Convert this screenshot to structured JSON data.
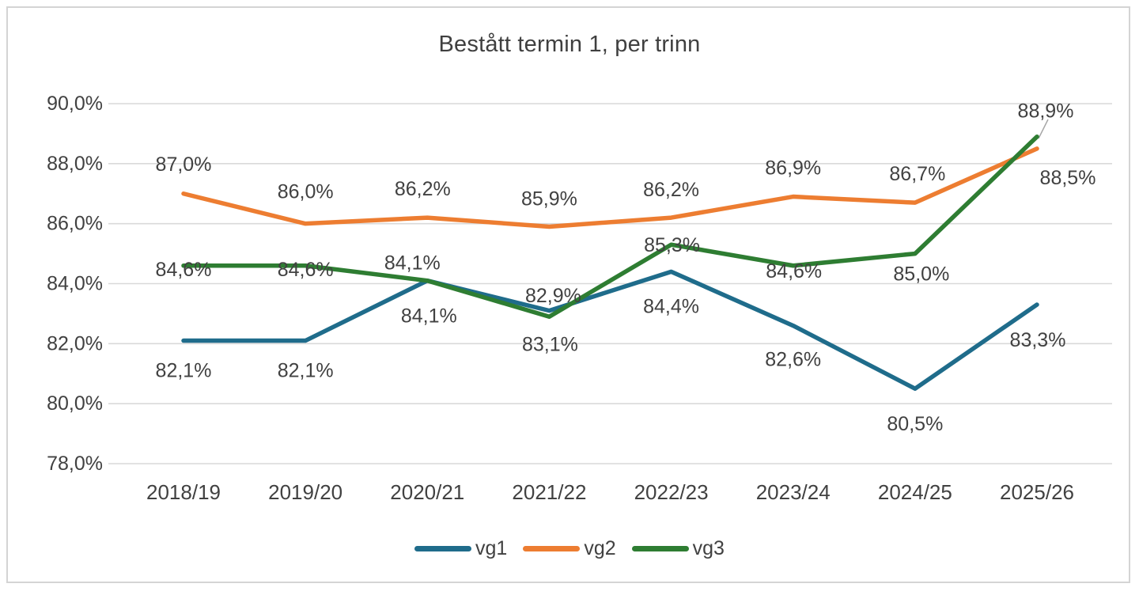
{
  "chart": {
    "title": "Bestått termin 1, per trinn"
  },
  "chart_data": {
    "type": "line",
    "title": "Bestått termin 1, per trinn",
    "xlabel": "",
    "ylabel": "",
    "categories": [
      "2018/19",
      "2019/20",
      "2020/21",
      "2021/22",
      "2022/23",
      "2023/24",
      "2024/25",
      "2025/26"
    ],
    "series": [
      {
        "name": "vg1",
        "color": "#1f6c8b",
        "values": [
          82.1,
          82.1,
          84.1,
          83.1,
          84.4,
          82.6,
          80.5,
          83.3
        ],
        "point_labels": [
          "82,1%",
          "82,1%",
          "84,1%",
          "83,1%",
          "84,4%",
          "82,6%",
          "80,5%",
          "83,3%"
        ]
      },
      {
        "name": "vg2",
        "color": "#ed7d31",
        "values": [
          87.0,
          86.0,
          86.2,
          85.9,
          86.2,
          86.9,
          86.7,
          88.5
        ],
        "point_labels": [
          "87,0%",
          "86,0%",
          "86,2%",
          "85,9%",
          "86,2%",
          "86,9%",
          "86,7%",
          "88,5%"
        ]
      },
      {
        "name": "vg3",
        "color": "#2e7d32",
        "values": [
          84.6,
          84.6,
          84.1,
          82.9,
          85.3,
          84.6,
          85.0,
          88.9
        ],
        "point_labels": [
          "84,6%",
          "84,6%",
          "84,1%",
          "82,9%",
          "85,3%",
          "84,6%",
          "85,0%",
          "88,9%"
        ]
      }
    ],
    "ylim": [
      78,
      90
    ],
    "ytick_step": 2,
    "ytick_labels": [
      "78,0%",
      "80,0%",
      "82,0%",
      "84,0%",
      "86,0%",
      "88,0%",
      "90,0%"
    ],
    "grid": true,
    "gridline_color": "#d9d9d9",
    "label_color": "#414141",
    "leader_line_color": "#a6a6a6",
    "legend_position": "bottom",
    "legend": [
      "vg1",
      "vg2",
      "vg3"
    ]
  }
}
